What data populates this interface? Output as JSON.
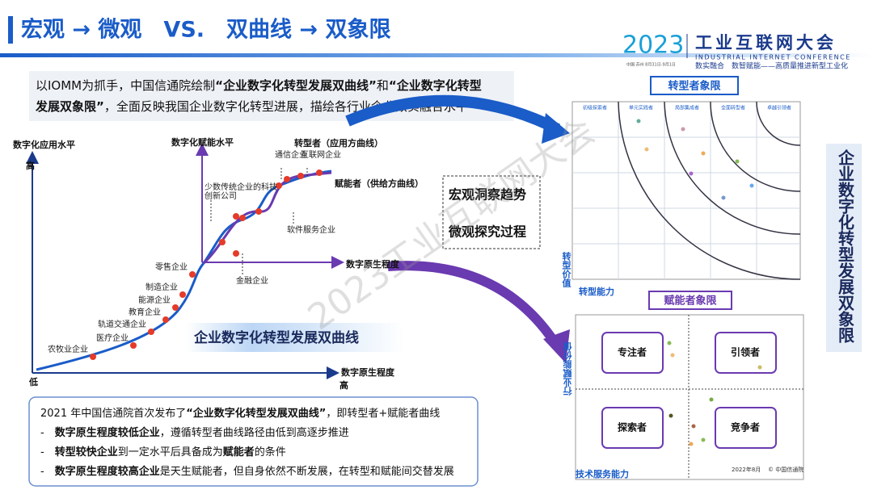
{
  "header": {
    "title": "宏观 → 微观　VS.　双曲线 → 双象限",
    "logo_year": "2023",
    "logo_name": "工业互联网大会",
    "logo_en": "INDUSTRIAL INTERNET CONFERENCE",
    "logo_place": "中国·苏州  8月31日-9月1日",
    "slogan": "数实融合　数智赋能——高质量推进新型工业化"
  },
  "intro": {
    "lines": [
      [
        {
          "text": "以IOMM为抓手，中国信通院绘制",
          "bold": false
        },
        {
          "text": "“企业数字化转型发展双曲线”",
          "bold": true
        },
        {
          "text": "和",
          "bold": false
        },
        {
          "text": "“企业数字化转型",
          "bold": true
        }
      ],
      [
        {
          "text": "发展双象限”",
          "bold": true
        },
        {
          "text": "，全面反映我国企业数字化转型进展，描绘各行业企业数实融合水平",
          "bold": false
        }
      ]
    ]
  },
  "curve_chart": {
    "y_label": "数字化应用水平",
    "y_high": "高",
    "y_low": "低",
    "x_label": "数字原生程度",
    "x_high": "高",
    "adopters": [
      "农牧业企业",
      "医疗企业",
      "轨道交通企业",
      "教育企业",
      "能源企业",
      "制造企业",
      "零售企业"
    ],
    "inner_y_label": "数字化赋能水平",
    "inner_x_label": "数字原生程度",
    "transformer_curve": "转型者（应用方曲线）",
    "enabler_curve": "赋能者（供给方曲线）",
    "inner_labels": [
      "少数传统企业的科技创新公司",
      "通信企业",
      "互联网企业",
      "软件服务企业",
      "金融企业"
    ],
    "banner": "企业数字化转型发展双曲线"
  },
  "focus_box": [
    "宏观洞察趋势",
    "微观探究过程"
  ],
  "transformer_quadrant": {
    "title": "转型者象限",
    "columns": [
      "初级探索者",
      "单元实践者",
      "局部集成者",
      "全面转型者",
      "卓越引领者"
    ],
    "y_label": "转型价值",
    "x_label": "转型能力"
  },
  "enabler_quadrant": {
    "title": "赋能者象限",
    "quadrants": [
      "专注者",
      "引领者",
      "探索者",
      "竞争者"
    ],
    "y_label": "行业赋能价值",
    "x_label": "技术服务能力",
    "date": "2022年8月",
    "source": "© 中国信通院"
  },
  "side_title": "企业数字化转型发展双象限",
  "watermark": "2023工业互联网大会",
  "summary": {
    "lines": [
      [
        {
          "text": "2021 年中国信通院首次发布了",
          "bold": false
        },
        {
          "text": "“企业数字化转型发展双曲线”",
          "bold": true
        },
        {
          "text": "，即转型者+赋能者曲线",
          "bold": false
        }
      ],
      [
        {
          "text": "-　",
          "bold": false
        },
        {
          "text": "数字原生程度较低企业",
          "bold": true
        },
        {
          "text": "，遵循转型者曲线路径由低到高逐步推进",
          "bold": false
        }
      ],
      [
        {
          "text": "-　",
          "bold": false
        },
        {
          "text": "转型较快企业",
          "bold": true
        },
        {
          "text": "到一定水平后具备成为",
          "bold": false
        },
        {
          "text": "赋能者",
          "bold": true
        },
        {
          "text": "的条件",
          "bold": false
        }
      ],
      [
        {
          "text": "-　",
          "bold": false
        },
        {
          "text": "数字原生程度较高企业",
          "bold": true
        },
        {
          "text": "是天生赋能者，但自身依然不断发展，在转型和赋能间交替发展",
          "bold": false
        }
      ]
    ]
  }
}
